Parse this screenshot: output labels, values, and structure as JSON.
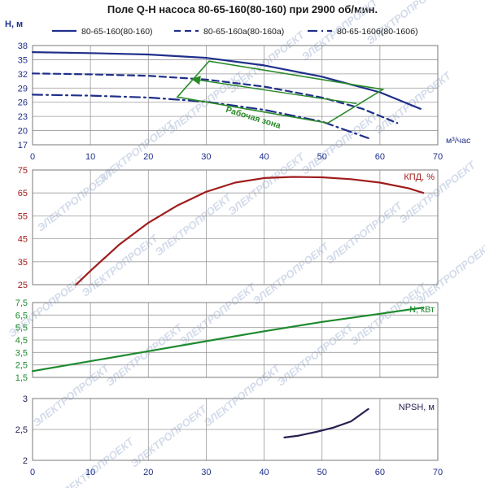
{
  "title": "Поле Q-H насоса 80-65-160(80-160) при 2900 об/мин.",
  "colors": {
    "qh": "#1f2f8a",
    "eff": "#a01c1c",
    "power": "#1e8a2e",
    "npsh": "#2a2050",
    "zone": "#2a8a2a",
    "grid": "#9a9a9a",
    "axis_text_h": "#1f2f8a",
    "axis_text_eff": "#a01c1c",
    "axis_text_n": "#1e8a2e",
    "axis_text_npsh": "#2a2050",
    "watermark": "#c9d3e6"
  },
  "watermark_text": "ЭЛЕКТРОПРОЕКТ",
  "chart_data": [
    {
      "id": "qh",
      "type": "line",
      "ylabel": "H, м",
      "xlabel": "м³/час",
      "xlim": [
        0,
        70
      ],
      "ylim": [
        17,
        38
      ],
      "x_ticks": [
        0,
        10,
        20,
        30,
        40,
        50,
        60,
        70
      ],
      "y_ticks": [
        17,
        20,
        23,
        26,
        29,
        32,
        35,
        38
      ],
      "grid": true,
      "legend_position": "top",
      "series": [
        {
          "name": "80-65-160(80-160)",
          "dash": "solid",
          "x": [
            0,
            10,
            20,
            30,
            40,
            50,
            60,
            67
          ],
          "y": [
            36.6,
            36.4,
            36.1,
            35.4,
            33.8,
            31.4,
            28.1,
            24.6
          ]
        },
        {
          "name": "80-65-160a(80-160a)",
          "dash": "dashed",
          "x": [
            0,
            10,
            20,
            30,
            40,
            50,
            57,
            63
          ],
          "y": [
            32.1,
            31.9,
            31.6,
            30.8,
            29.3,
            27.0,
            24.6,
            21.6
          ]
        },
        {
          "name": "80-65-160б(80-160б)",
          "dash": "dashdot",
          "x": [
            0,
            10,
            20,
            30,
            40,
            50,
            58
          ],
          "y": [
            27.6,
            27.4,
            27.0,
            26.1,
            24.4,
            21.9,
            18.4
          ]
        }
      ],
      "work_zone": {
        "label": "Рабочая зона",
        "polygon": [
          [
            25,
            27.1
          ],
          [
            30.5,
            34.7
          ],
          [
            60.5,
            28.7
          ],
          [
            51,
            21.6
          ]
        ],
        "arrow_from": [
          56,
          25.7
        ],
        "arrow_to": [
          27.6,
          30.9
        ]
      }
    },
    {
      "id": "efficiency",
      "type": "line",
      "ylabel": "КПД, %",
      "xlim": [
        0,
        70
      ],
      "ylim": [
        25,
        75
      ],
      "x_ticks": [
        0,
        10,
        20,
        30,
        40,
        50,
        60,
        70
      ],
      "y_ticks": [
        25,
        35,
        45,
        55,
        65,
        75
      ],
      "grid": true,
      "series": [
        {
          "name": "КПД, %",
          "x": [
            7.5,
            10,
            15,
            20,
            25,
            30,
            35,
            40,
            45,
            50,
            55,
            60,
            65,
            67.5
          ],
          "y": [
            25,
            31,
            42.5,
            52,
            59.5,
            65.5,
            69.5,
            71.5,
            72,
            71.8,
            71,
            69.5,
            67,
            65
          ]
        }
      ]
    },
    {
      "id": "power",
      "type": "line",
      "ylabel": "N, кВт",
      "xlim": [
        0,
        70
      ],
      "ylim": [
        1.5,
        7.5
      ],
      "x_ticks": [
        0,
        10,
        20,
        30,
        40,
        50,
        60,
        70
      ],
      "y_ticks": [
        1.5,
        2.5,
        3.5,
        4.5,
        5.5,
        6.5,
        7.5
      ],
      "y_tick_labels": [
        "1,5",
        "2,5",
        "3,5",
        "4,5",
        "5,5",
        "6,5",
        "7,5"
      ],
      "grid": true,
      "series": [
        {
          "name": "N, кВт",
          "x": [
            0,
            10,
            20,
            30,
            40,
            50,
            60,
            67.5
          ],
          "y": [
            2.0,
            2.8,
            3.6,
            4.4,
            5.2,
            5.95,
            6.6,
            7.1
          ]
        }
      ]
    },
    {
      "id": "npsh",
      "type": "line",
      "ylabel": "NPSH, м",
      "xlim": [
        0,
        70
      ],
      "ylim": [
        2,
        3
      ],
      "x_ticks": [
        0,
        10,
        20,
        30,
        40,
        50,
        60,
        70
      ],
      "y_ticks": [
        2,
        2.5,
        3
      ],
      "y_tick_labels": [
        "2",
        "2,5",
        "3"
      ],
      "grid": true,
      "series": [
        {
          "name": "NPSH, м",
          "x": [
            43.5,
            46,
            49,
            52,
            55,
            58
          ],
          "y": [
            2.37,
            2.4,
            2.46,
            2.53,
            2.63,
            2.83
          ]
        }
      ]
    }
  ]
}
